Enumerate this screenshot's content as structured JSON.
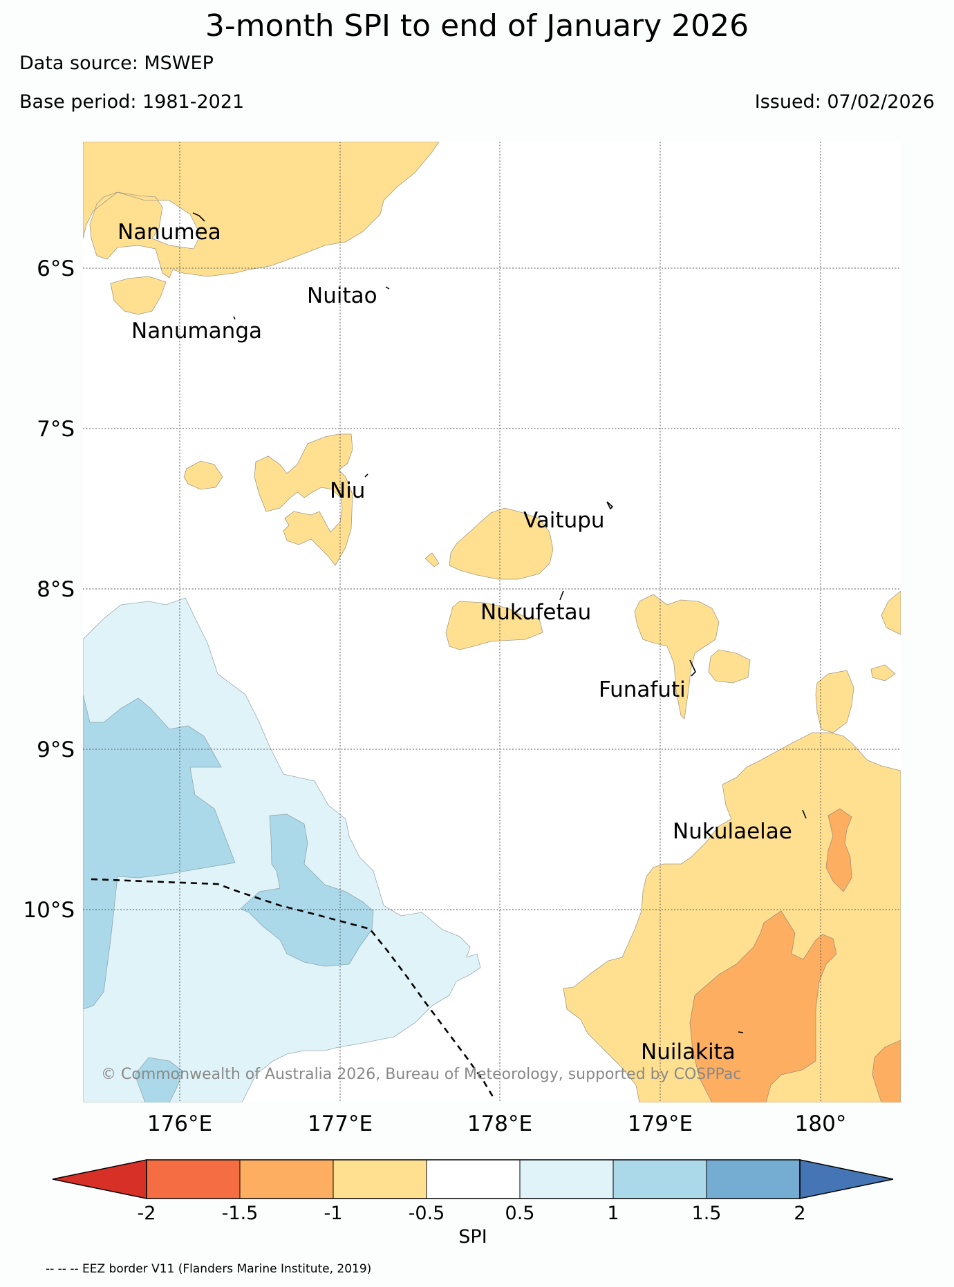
{
  "header": {
    "title": "3-month SPI to end of January 2026",
    "data_source": "Data source: MSWEP",
    "base_period": "Base period: 1981-2021",
    "issued": "Issued: 07/02/2026"
  },
  "map": {
    "lon_labels": [
      "176°E",
      "177°E",
      "178°E",
      "179°E",
      "180°"
    ],
    "lat_labels": [
      "6°S",
      "7°S",
      "8°S",
      "9°S",
      "10°S"
    ],
    "places": [
      {
        "name": "Nanumea"
      },
      {
        "name": "Nuitao"
      },
      {
        "name": "Nanumanga"
      },
      {
        "name": "Niu"
      },
      {
        "name": "Vaitupu"
      },
      {
        "name": "Nukufetau"
      },
      {
        "name": "Funafuti"
      },
      {
        "name": "Nukulaelae"
      },
      {
        "name": "Nuilakita"
      }
    ],
    "copyright": "© Commonwealth of Australia 2026, Bureau of Meteorology, supported by COSPPac",
    "eez_color": "#000000"
  },
  "colorbar": {
    "label": "SPI",
    "ticks": [
      "-2",
      "-1.5",
      "-1",
      "-0.5",
      "0.5",
      "1",
      "1.5",
      "2"
    ],
    "colors": {
      "below_-2": "#d73027",
      "-2_to_-1.5": "#f46d43",
      "-1.5_to_-1": "#fdae61",
      "-1_to_-0.5": "#fee090",
      "-0.5_to_0.5": "#ffffff",
      "0.5_to_1": "#e0f3f8",
      "1_to_1.5": "#abd9e9",
      "1.5_to_2": "#74add1",
      "above_2": "#4575b4"
    }
  },
  "footnote": "-- -- -- EEZ border V11 (Flanders Marine Institute, 2019)"
}
